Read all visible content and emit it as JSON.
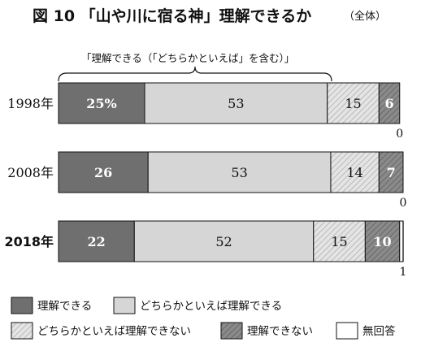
{
  "title": {
    "main": "図 10 「山や川に宿る神」理解できるか",
    "sub": "（全体）"
  },
  "brace_label": "「理解できる（「どちらかといえば」を含む）」",
  "chart_data": {
    "type": "bar",
    "orientation": "horizontal",
    "stacked": true,
    "categories": [
      "1998年",
      "2008年",
      "2018年"
    ],
    "series": [
      {
        "name": "理解できる",
        "values": [
          25,
          26,
          22
        ],
        "labels": [
          "25%",
          "26",
          "22"
        ],
        "color": "#6f6f6f",
        "pattern": "solid"
      },
      {
        "name": "どちらかといえば理解できる",
        "values": [
          53,
          53,
          52
        ],
        "labels": [
          "53",
          "53",
          "52"
        ],
        "color": "#d6d6d6",
        "pattern": "solid"
      },
      {
        "name": "どちらかといえば理解できない",
        "values": [
          15,
          14,
          15
        ],
        "labels": [
          "15",
          "14",
          "15"
        ],
        "color": "#e4e4e4",
        "pattern": "hatch-light"
      },
      {
        "name": "理解できない",
        "values": [
          6,
          7,
          10
        ],
        "labels": [
          "6",
          "7",
          "10"
        ],
        "color": "#8a8a8a",
        "pattern": "hatch-dark"
      },
      {
        "name": "無回答",
        "values": [
          0,
          0,
          1
        ],
        "labels": [
          "0",
          "0",
          "1"
        ],
        "color": "#ffffff",
        "pattern": "solid"
      }
    ],
    "xlim": [
      0,
      100
    ],
    "legend_position": "bottom"
  }
}
